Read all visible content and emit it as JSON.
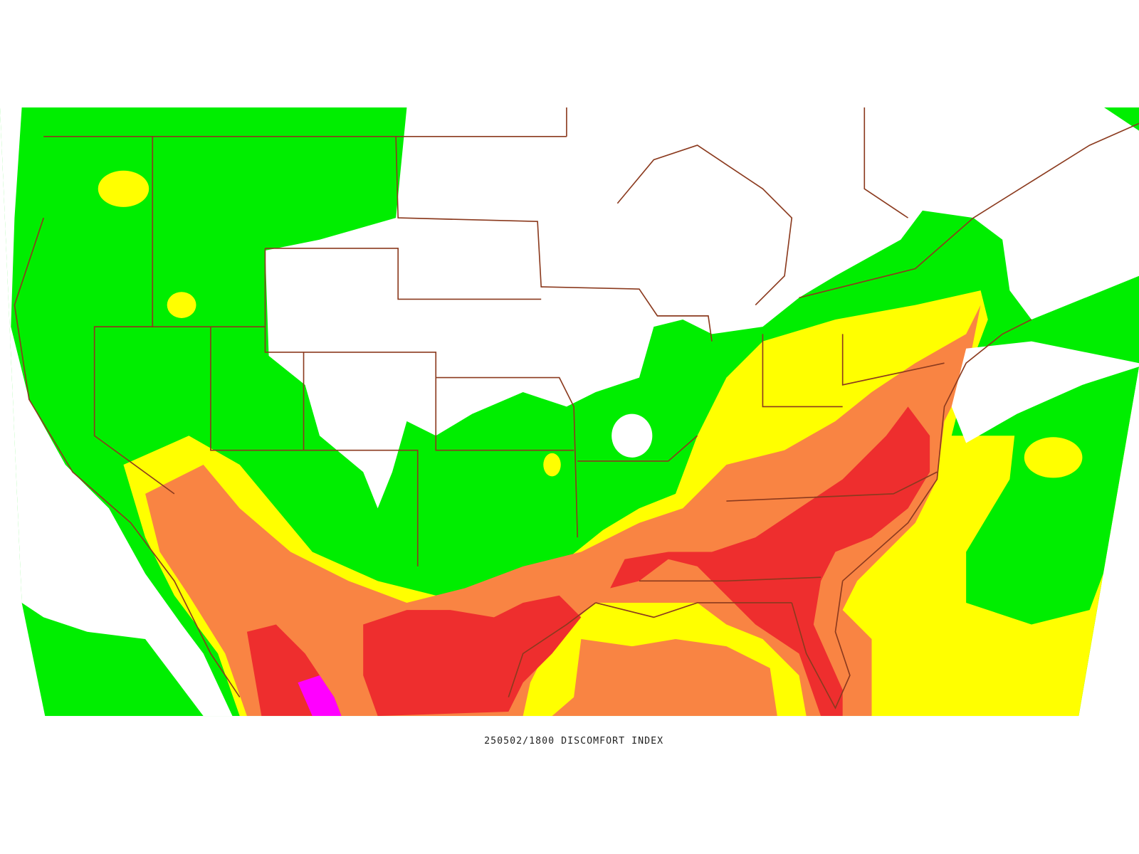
{
  "caption": "250502/1800 DISCOMFORT INDEX"
}
